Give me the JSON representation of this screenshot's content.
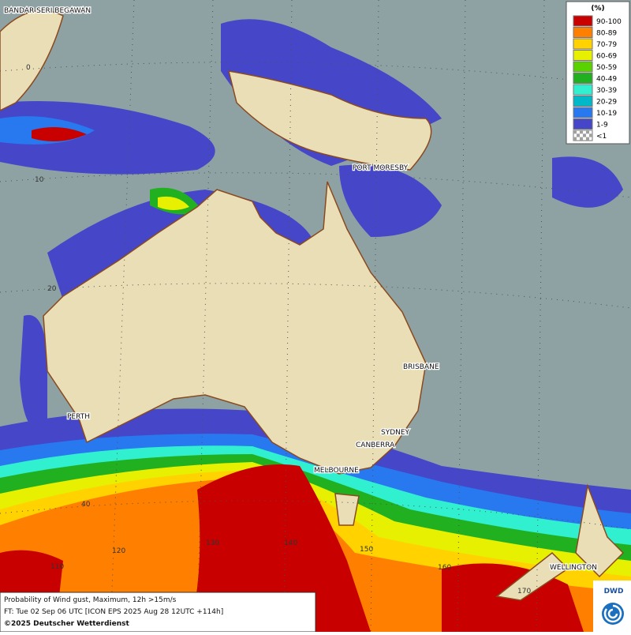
{
  "legend": {
    "unit": "(%)",
    "entries": [
      {
        "label": "90-100",
        "color": "#c80000"
      },
      {
        "label": "80-89",
        "color": "#ff7f00"
      },
      {
        "label": "70-79",
        "color": "#ffd200"
      },
      {
        "label": "60-69",
        "color": "#e6f000"
      },
      {
        "label": "50-59",
        "color": "#5ad200"
      },
      {
        "label": "40-49",
        "color": "#20b020"
      },
      {
        "label": "30-39",
        "color": "#30f0d0"
      },
      {
        "label": "20-29",
        "color": "#00b8c8"
      },
      {
        "label": "10-19",
        "color": "#2878f0"
      },
      {
        "label": "1-9",
        "color": "#4646c8"
      },
      {
        "label": "<1",
        "color": "#a0a0a0"
      }
    ]
  },
  "places": [
    {
      "label": "BANDAR SERI BEGAWAN"
    },
    {
      "label": "PORT MORESBY"
    },
    {
      "label": "BRISBANE"
    },
    {
      "label": "PERTH"
    },
    {
      "label": "SYDNEY"
    },
    {
      "label": "CANBERRA"
    },
    {
      "label": "MELBOURNE"
    },
    {
      "label": "WELLINGTON"
    }
  ],
  "grid_labels": [
    "0",
    "10",
    "20",
    "40",
    "110",
    "120",
    "130",
    "140",
    "150",
    "160",
    "170"
  ],
  "caption": [
    "Probability of Wind gust, Maximum, 12h >15m/s",
    "FT: Tue 02 Sep 06 UTC [ICON EPS 2025 Aug 28 12UTC +114h]",
    "©2025 Deutscher Wetterdienst"
  ],
  "logo": "DWD"
}
